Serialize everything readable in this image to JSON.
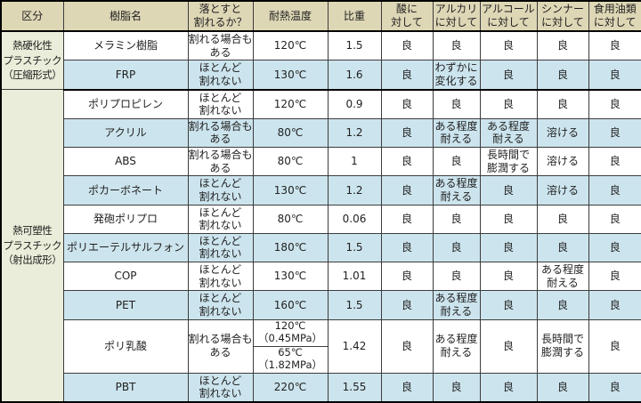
{
  "colors": {
    "header_bg": "#ded7b6",
    "category_bg": "#eaedd9",
    "row_blue": "#cce4ed",
    "row_white": "#ffffff",
    "border": "#3c3c3c",
    "border_heavy": "#000000",
    "text": "#1f1f1f"
  },
  "chart_data": {
    "type": "table",
    "columns": [
      "区分",
      "樹脂名",
      "落とすと\n割れるか？",
      "耐熱温度",
      "比重",
      "酸に\n対して",
      "アルカリ\nに対して",
      "アルコール\nに対して",
      "シンナー\nに対して",
      "食用油類\nに対して"
    ],
    "groups": [
      {
        "category": "熱硬化性\nプラスチック\n（圧縮形式）",
        "rows": [
          {
            "resin": "メラミン樹脂",
            "drop": "割れる場合も\nある",
            "heat": "120℃",
            "gravity": "1.5",
            "acid": "良",
            "alkali": "良",
            "alcohol": "良",
            "thinner": "良",
            "oil": "良"
          },
          {
            "resin": "FRP",
            "drop": "ほとんど\n割れない",
            "heat": "130℃",
            "gravity": "1.6",
            "acid": "良",
            "alkali": "わずかに\n変化する",
            "alcohol": "良",
            "thinner": "良",
            "oil": "良"
          }
        ]
      },
      {
        "category": "熱可塑性\nプラスチック\n（射出成形）",
        "rows": [
          {
            "resin": "ポリプロピレン",
            "drop": "ほとんど\n割れない",
            "heat": "120℃",
            "gravity": "0.9",
            "acid": "良",
            "alkali": "良",
            "alcohol": "良",
            "thinner": "良",
            "oil": "良"
          },
          {
            "resin": "アクリル",
            "drop": "割れる場合も\nある",
            "heat": "80℃",
            "gravity": "1.2",
            "acid": "良",
            "alkali": "ある程度\n耐える",
            "alcohol": "ある程度\n耐える",
            "thinner": "溶ける",
            "oil": "良"
          },
          {
            "resin": "ABS",
            "drop": "割れる場合も\nある",
            "heat": "80℃",
            "gravity": "1",
            "acid": "良",
            "alkali": "良",
            "alcohol": "長時間で\n膨潤する",
            "thinner": "溶ける",
            "oil": "良"
          },
          {
            "resin": "ポカーボネート",
            "drop": "ほとんど\n割れない",
            "heat": "130℃",
            "gravity": "1.2",
            "acid": "良",
            "alkali": "ある程度\n耐える",
            "alcohol": "良",
            "thinner": "溶ける",
            "oil": "良"
          },
          {
            "resin": "発砲ポリプロ",
            "drop": "ほとんど\n割れない",
            "heat": "80℃",
            "gravity": "0.06",
            "acid": "良",
            "alkali": "良",
            "alcohol": "良",
            "thinner": "良",
            "oil": "良"
          },
          {
            "resin": "ポリエーテルサルフォン",
            "drop": "ほとんど\n割れない",
            "heat": "180℃",
            "gravity": "1.5",
            "acid": "良",
            "alkali": "良",
            "alcohol": "良",
            "thinner": "良",
            "oil": "良"
          },
          {
            "resin": "COP",
            "drop": "ほとんど\n割れない",
            "heat": "130℃",
            "gravity": "1.01",
            "acid": "良",
            "alkali": "良",
            "alcohol": "良",
            "thinner": "ある程度\n耐える",
            "oil": "良"
          },
          {
            "resin": "PET",
            "drop": "ほとんど\n割れない",
            "heat": "160℃",
            "gravity": "1.5",
            "acid": "良",
            "alkali": "ある程度\n耐える",
            "alcohol": "良",
            "thinner": "良",
            "oil": "良"
          },
          {
            "resin": "ポリ乳酸",
            "drop": "割れる場合も\nある",
            "heat": [
              "120℃\n（0.45MPa）",
              "65℃\n（1.82MPa）"
            ],
            "gravity": "1.42",
            "acid": "良",
            "alkali": "ある程度\n耐える",
            "alcohol": "良",
            "thinner": "長時間で\n膨潤する",
            "oil": "良"
          },
          {
            "resin": "PBT",
            "drop": "ほとんど\n割れない",
            "heat": "220℃",
            "gravity": "1.55",
            "acid": "良",
            "alkali": "良",
            "alcohol": "良",
            "thinner": "良",
            "oil": "良"
          }
        ]
      }
    ]
  }
}
